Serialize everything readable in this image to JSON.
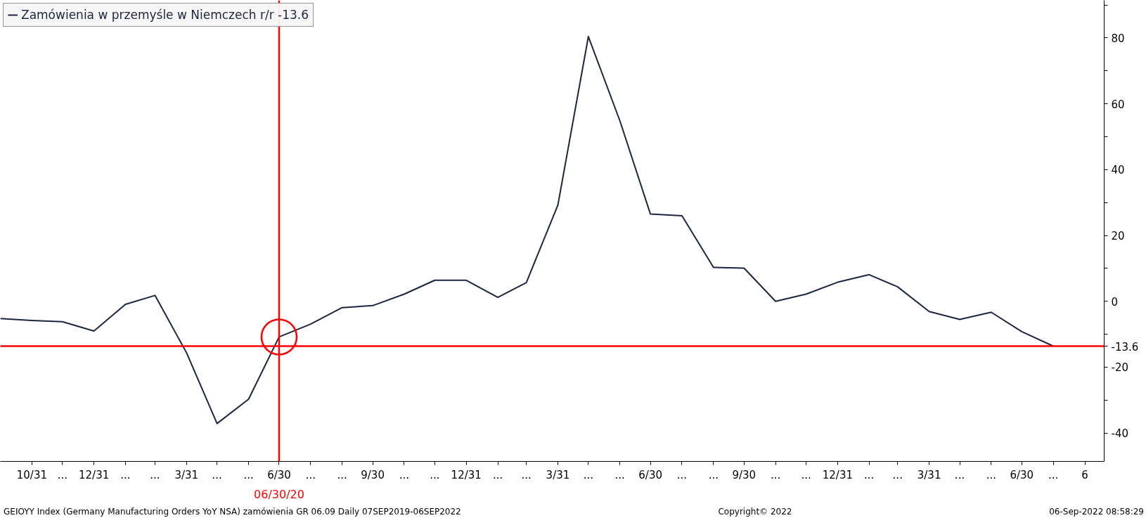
{
  "chart_data": {
    "type": "line",
    "x": [
      "2019-09-30",
      "2019-10-31",
      "2019-11-30",
      "2019-12-31",
      "2020-01-31",
      "2020-02-29",
      "2020-03-31",
      "2020-04-30",
      "2020-05-31",
      "2020-06-30",
      "2020-07-31",
      "2020-08-31",
      "2020-09-30",
      "2020-10-31",
      "2020-11-30",
      "2020-12-31",
      "2021-01-31",
      "2021-02-28",
      "2021-03-31",
      "2021-04-30",
      "2021-05-31",
      "2021-06-30",
      "2021-07-31",
      "2021-08-31",
      "2021-09-30",
      "2021-10-31",
      "2021-11-30",
      "2021-12-31",
      "2022-01-31",
      "2022-02-28",
      "2022-03-31",
      "2022-04-30",
      "2022-05-31",
      "2022-06-30",
      "2022-07-31"
    ],
    "series": [
      {
        "name": "Zamówienia w przemyśle w Niemczech r/r -13.6",
        "color": "#1c2541",
        "values": [
          -5.2,
          -5.8,
          -6.2,
          -9.0,
          -0.9,
          1.8,
          -15.6,
          -37.1,
          -29.7,
          -10.8,
          -6.9,
          -1.9,
          -1.3,
          2.2,
          6.4,
          6.4,
          1.2,
          5.7,
          29.2,
          80.4,
          54.8,
          26.5,
          26.0,
          10.3,
          10.1,
          0.0,
          2.2,
          5.8,
          8.1,
          4.4,
          -3.1,
          -5.5,
          -3.3,
          -9.2,
          -13.6
        ]
      }
    ],
    "xlim": [
      "2019-09-30",
      "2022-09-19"
    ],
    "xticks": [
      {
        "value": "2019-10-31",
        "label": "10/31"
      },
      {
        "value": "2019-11-30",
        "label": "..."
      },
      {
        "value": "2019-12-31",
        "label": "12/31"
      },
      {
        "value": "2020-01-31",
        "label": "..."
      },
      {
        "value": "2020-02-29",
        "label": "..."
      },
      {
        "value": "2020-03-31",
        "label": "3/31"
      },
      {
        "value": "2020-04-30",
        "label": "..."
      },
      {
        "value": "2020-05-31",
        "label": "..."
      },
      {
        "value": "2020-06-30",
        "label": "6/30"
      },
      {
        "value": "2020-07-31",
        "label": "..."
      },
      {
        "value": "2020-08-31",
        "label": "..."
      },
      {
        "value": "2020-09-30",
        "label": "9/30"
      },
      {
        "value": "2020-10-31",
        "label": "..."
      },
      {
        "value": "2020-11-30",
        "label": "..."
      },
      {
        "value": "2020-12-31",
        "label": "12/31"
      },
      {
        "value": "2021-01-31",
        "label": "..."
      },
      {
        "value": "2021-02-28",
        "label": "..."
      },
      {
        "value": "2021-03-31",
        "label": "3/31"
      },
      {
        "value": "2021-04-30",
        "label": "..."
      },
      {
        "value": "2021-05-31",
        "label": "..."
      },
      {
        "value": "2021-06-30",
        "label": "6/30"
      },
      {
        "value": "2021-07-31",
        "label": "..."
      },
      {
        "value": "2021-08-31",
        "label": "..."
      },
      {
        "value": "2021-09-30",
        "label": "9/30"
      },
      {
        "value": "2021-10-31",
        "label": "..."
      },
      {
        "value": "2021-11-30",
        "label": "..."
      },
      {
        "value": "2021-12-31",
        "label": "12/31"
      },
      {
        "value": "2022-01-31",
        "label": "..."
      },
      {
        "value": "2022-02-28",
        "label": "..."
      },
      {
        "value": "2022-03-31",
        "label": "3/31"
      },
      {
        "value": "2022-04-30",
        "label": "..."
      },
      {
        "value": "2022-05-31",
        "label": "..."
      },
      {
        "value": "2022-06-30",
        "label": "6/30"
      },
      {
        "value": "2022-07-31",
        "label": "..."
      },
      {
        "value": "2022-08-31",
        "label": "6"
      }
    ],
    "ylim": [
      -48.6,
      91.4
    ],
    "yticks": [
      -40,
      {
        "value": -30,
        "label": null
      },
      -20,
      {
        "value": -10,
        "label": null
      },
      0,
      {
        "value": 10,
        "label": null
      },
      20,
      {
        "value": 30,
        "label": null
      },
      40,
      {
        "value": 50,
        "label": null
      },
      60,
      {
        "value": 70,
        "label": null
      },
      80,
      {
        "value": 90,
        "label": null
      }
    ],
    "ref_lines": [
      {
        "axis": "y",
        "value": -13.6,
        "label": "-13.6",
        "color": "#ff0000"
      },
      {
        "axis": "x",
        "value": "2020-06-30",
        "label": "06/30/20",
        "color": "#ff0000"
      }
    ],
    "annotations": [
      "GEIOYY Index (Germany Manufacturing Orders YoY NSA) zamówienia GR 06.09  Daily 07SEP2019-06SEP2022",
      "Copyright© 2022",
      "06-Sep-2022 08:58:29"
    ],
    "legend": "top left",
    "grid": false,
    "marker": "none",
    "line_style": "solid"
  }
}
